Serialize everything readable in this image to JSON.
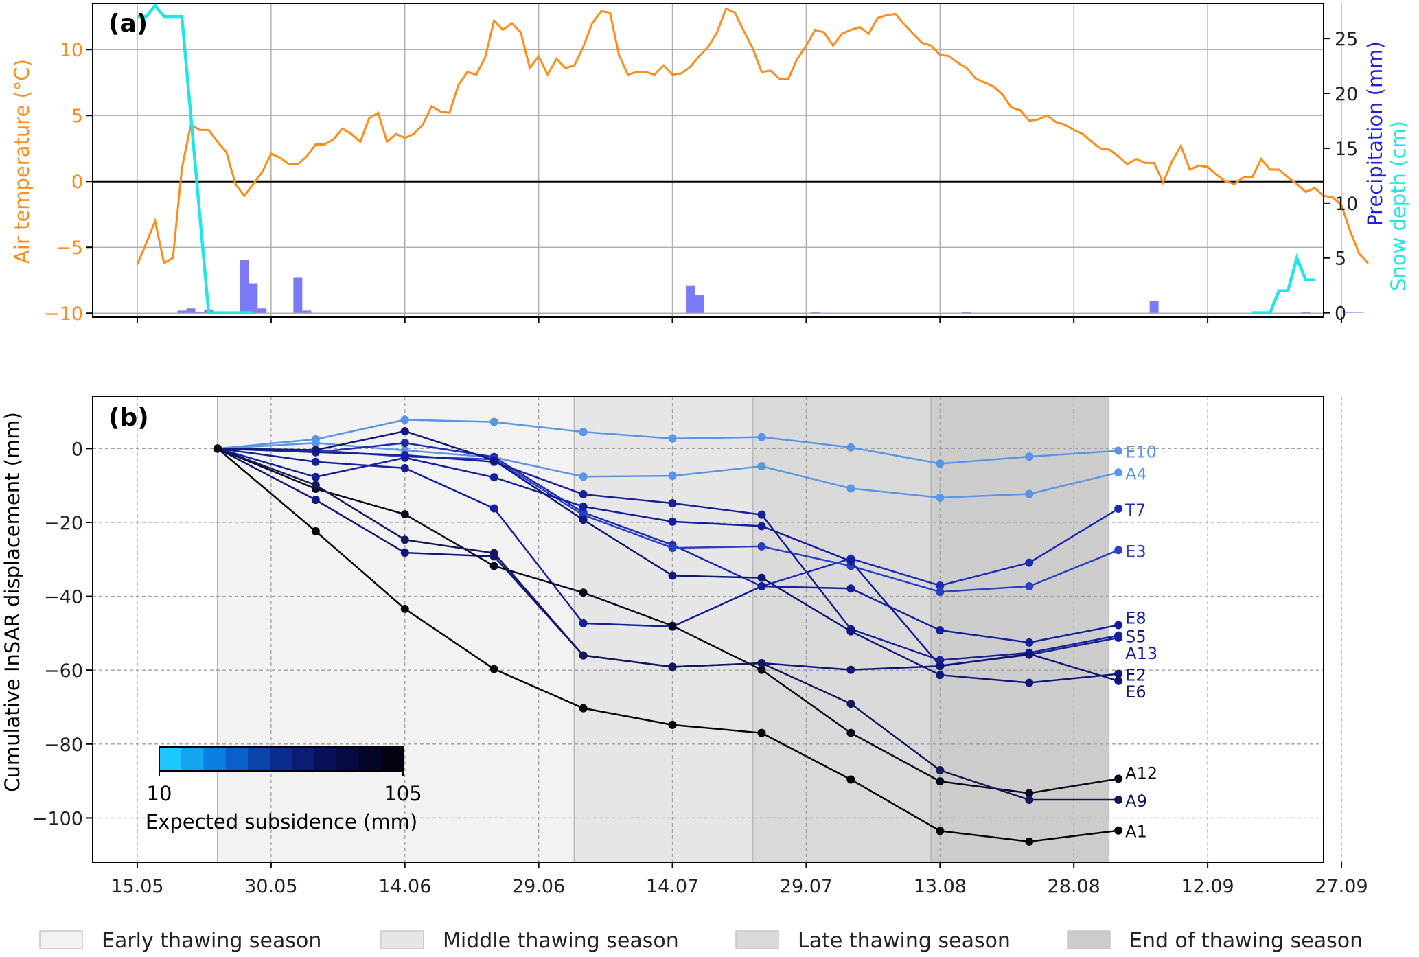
{
  "chart_data": [
    {
      "panel_label": "(a)",
      "type": "line+bar",
      "x_ticks": [
        "15.05",
        "30.05",
        "14.06",
        "29.06",
        "14.07",
        "29.07",
        "13.08",
        "28.08",
        "12.09",
        "27.09"
      ],
      "ylabel_left": "Air temperature (°C)",
      "ylabel_right_1": "Precipitation (mm)",
      "ylabel_right_2": "Snow depth (cm)",
      "y_left_ticks": [
        "−10",
        "−5",
        "0",
        "5",
        "10"
      ],
      "y_right_ticks": [
        "0",
        "5",
        "10",
        "15",
        "20",
        "25"
      ],
      "y_left_range": [
        -10.3,
        13.5
      ],
      "y_right_range": [
        -0.4,
        28.2
      ],
      "x_range_day": [
        -5,
        133
      ],
      "grid": true,
      "colors": {
        "temperature": "#ff8c1a",
        "precipitation": "#7b7bf5",
        "snow": "#22e6e6"
      },
      "temperature": {
        "day": [
          0,
          1,
          2,
          3,
          4,
          5,
          6,
          7,
          8,
          9,
          10,
          11,
          12,
          13,
          14,
          15,
          16,
          17,
          18,
          19,
          20,
          21,
          22,
          23,
          24,
          25,
          26,
          27,
          28,
          29,
          30,
          31,
          32,
          33,
          34,
          35,
          36,
          37,
          38,
          39,
          40,
          41,
          42,
          43,
          44,
          45,
          46,
          47,
          48,
          49,
          50,
          51,
          52,
          53,
          54,
          55,
          56,
          57,
          58,
          59,
          60,
          61,
          62,
          63,
          64,
          65,
          66,
          67,
          68,
          69,
          70,
          71,
          72,
          73,
          74,
          75,
          76,
          77,
          78,
          79,
          80,
          81,
          82,
          83,
          84,
          85,
          86,
          87,
          88,
          89,
          90,
          91,
          92,
          93,
          94,
          95,
          96,
          97,
          98,
          99,
          100,
          101,
          102,
          103,
          104,
          105,
          106,
          107,
          108,
          109,
          110,
          111,
          112,
          113,
          114,
          115,
          116,
          117,
          118,
          119,
          120,
          121,
          122,
          123,
          124,
          125,
          126,
          127,
          128,
          129,
          130,
          131,
          132,
          133,
          134,
          135,
          136,
          137,
          138
        ],
        "value": [
          -6.3,
          -4.7,
          -3,
          -6.2,
          -5.8,
          1,
          4.3,
          3.9,
          3.9,
          3,
          2.2,
          -0.2,
          -1.1,
          -0.2,
          0.7,
          2.1,
          1.8,
          1.3,
          1.3,
          1.9,
          2.8,
          2.8,
          3.2,
          4,
          3.6,
          3,
          4.8,
          5.2,
          3,
          3.6,
          3.3,
          3.6,
          4.3,
          5.7,
          5.3,
          5.2,
          7.3,
          8.3,
          8.1,
          9.4,
          12.2,
          11.5,
          12,
          11.3,
          8.6,
          9.5,
          8.1,
          9.3,
          8.6,
          8.8,
          10.2,
          12,
          12.9,
          12.8,
          9.6,
          8.1,
          8.3,
          8.3,
          8.1,
          8.8,
          8.1,
          8.2,
          8.7,
          9.5,
          10.2,
          11.3,
          13.1,
          12.8,
          11.4,
          10.1,
          8.3,
          8.4,
          7.8,
          7.8,
          9.3,
          10.3,
          11.5,
          11.3,
          10.3,
          11.2,
          11.5,
          11.7,
          11.2,
          12.4,
          12.6,
          12.7,
          11.9,
          11.2,
          10.5,
          10.3,
          9.6,
          9.5,
          9,
          8.6,
          7.8,
          7.5,
          7.2,
          6.6,
          5.6,
          5.4,
          4.6,
          4.7,
          5,
          4.5,
          4.3,
          3.9,
          3.6,
          3,
          2.5,
          2.4,
          1.9,
          1.3,
          1.7,
          1.4,
          1.4,
          -0.1,
          1.5,
          2.7,
          0.9,
          1.2,
          1.1,
          0.5,
          0,
          -0.2,
          0.3,
          0.3,
          1.7,
          0.9,
          0.9,
          0.3,
          -0.2,
          -0.8,
          -0.5,
          -1.1,
          -1.2,
          -1.8,
          -3.8,
          -5.5,
          -6.2
        ]
      },
      "snow_depth": {
        "day": [
          0,
          1,
          2,
          3,
          4,
          5,
          6,
          7,
          8,
          9,
          10,
          11,
          12,
          13,
          125,
          126,
          127,
          128,
          129,
          130,
          131,
          132
        ],
        "value": [
          27,
          27,
          28,
          27,
          27,
          27,
          18,
          9,
          0,
          0,
          0,
          0,
          0,
          0,
          0,
          0,
          0,
          2,
          2,
          5,
          3,
          3
        ]
      },
      "precipitation": {
        "day": [
          0,
          1,
          2,
          3,
          4,
          5,
          6,
          7,
          8,
          9,
          10,
          11,
          12,
          13,
          14,
          15,
          16,
          17,
          18,
          19,
          20,
          21,
          22,
          23,
          24,
          25,
          26,
          27,
          28,
          29,
          30,
          31,
          32,
          33,
          34,
          35,
          36,
          37,
          38,
          39,
          40,
          41,
          42,
          43,
          44,
          45,
          46,
          47,
          48,
          49,
          50,
          51,
          52,
          53,
          54,
          55,
          56,
          57,
          58,
          59,
          60,
          61,
          62,
          63,
          64,
          65,
          66,
          67,
          68,
          69,
          70,
          71,
          72,
          73,
          74,
          75,
          76,
          77,
          78,
          79,
          80,
          81,
          82,
          83,
          84,
          85,
          86,
          87,
          88,
          89,
          90,
          91,
          92,
          93,
          94,
          95,
          96,
          97,
          98,
          99,
          100,
          101,
          102,
          103,
          104,
          105,
          106,
          107,
          108,
          109,
          110,
          111,
          112,
          113,
          114,
          115,
          116,
          117,
          118,
          119,
          120,
          121,
          122,
          123,
          124,
          125,
          126,
          127,
          128,
          129,
          130,
          131,
          132,
          133,
          134,
          135,
          136,
          137,
          138
        ],
        "value": [
          0,
          0,
          0,
          0,
          0,
          0.2,
          0.4,
          0.1,
          0.3,
          0,
          0,
          0,
          4.8,
          2.7,
          0.4,
          0,
          0,
          0,
          3.2,
          0.2,
          0,
          0,
          0,
          0,
          0,
          0,
          0,
          0,
          0,
          0,
          0,
          0,
          0,
          0,
          0,
          0,
          0,
          0,
          0,
          0,
          0,
          0,
          0,
          0,
          0,
          0,
          0,
          0,
          0,
          0,
          0,
          0,
          0,
          0,
          0,
          0,
          0,
          0,
          0,
          0,
          0,
          0,
          2.5,
          1.6,
          0,
          0,
          0,
          0,
          0,
          0,
          0,
          0,
          0,
          0,
          0,
          0,
          0.1,
          0,
          0,
          0,
          0,
          0,
          0,
          0,
          0,
          0,
          0,
          0,
          0,
          0,
          0,
          0,
          0,
          0.1,
          0,
          0,
          0,
          0,
          0,
          0,
          0,
          0,
          0,
          0,
          0,
          0,
          0,
          0,
          0,
          0,
          0,
          0,
          0,
          0,
          1.1,
          0,
          0,
          0,
          0,
          0,
          0,
          0,
          0,
          0,
          0,
          0,
          0,
          0,
          0,
          0,
          0,
          0.1,
          0,
          0,
          0,
          0,
          0.1,
          0.1,
          0,
          0
        ]
      },
      "zero_line": 0
    },
    {
      "panel_label": "(b)",
      "type": "line",
      "ylabel": "Cumulative InSAR displacement (mm)",
      "x_ticks": [
        "15.05",
        "30.05",
        "14.06",
        "29.06",
        "14.07",
        "29.07",
        "13.08",
        "28.08",
        "12.09",
        "27.09"
      ],
      "y_ticks": [
        "0",
        "−20",
        "−40",
        "−60",
        "−80",
        "−100"
      ],
      "y_range": [
        -112,
        14
      ],
      "x_range_day": [
        -5,
        133
      ],
      "grid": "dashed",
      "x_day": [
        9,
        20,
        30,
        40,
        50,
        60,
        70,
        80,
        90,
        100,
        110
      ],
      "series": [
        {
          "name": "E10",
          "color": "#5b93e6",
          "values": [
            0,
            2.5,
            7.8,
            7.2,
            4.5,
            2.7,
            3.1,
            0.3,
            -4.1,
            -2.2,
            -0.6
          ]
        },
        {
          "name": "A4",
          "color": "#5b93e6",
          "values": [
            0,
            1.5,
            -0.5,
            -2.4,
            -7.6,
            -7.4,
            -4.8,
            -10.8,
            -13.3,
            -12.3,
            -6.5
          ]
        },
        {
          "name": "T7",
          "color": "#1d2bb3",
          "values": [
            0,
            -1,
            1.5,
            -2.3,
            -17.3,
            -26.1,
            -37.3,
            -29.8,
            -37.1,
            -30.9,
            -16.3
          ]
        },
        {
          "name": "E3",
          "color": "#2a40c4",
          "values": [
            0,
            -0.5,
            -2.2,
            -2.9,
            -18,
            -26.9,
            -26.5,
            -31.8,
            -38.8,
            -37.3,
            -27.5
          ]
        },
        {
          "name": "E8",
          "color": "#14209a",
          "values": [
            0,
            -3.6,
            -5.3,
            -16.2,
            -47.3,
            -48.2,
            -37.3,
            -37.9,
            -49.2,
            -52.5,
            -47.8
          ]
        },
        {
          "name": "S5",
          "color": "#1a2196",
          "values": [
            0,
            -1,
            -1.8,
            -3.6,
            -12.4,
            -14.8,
            -17.9,
            -48.9,
            -57.3,
            -55.3,
            -50.6
          ]
        },
        {
          "name": "A13",
          "color": "#14209a",
          "values": [
            0,
            -7.7,
            -2.5,
            -7.8,
            -15.7,
            -19.8,
            -21,
            -30.5,
            -58.8,
            -55.8,
            -51.2
          ]
        },
        {
          "name": "E2",
          "color": "#10187a",
          "values": [
            0,
            -0.4,
            4.7,
            -3.2,
            -19.3,
            -34.4,
            -35,
            -49.5,
            -61.3,
            -63.4,
            -61
          ]
        },
        {
          "name": "E6",
          "color": "#10157a",
          "values": [
            0,
            -13.9,
            -28.2,
            -29.2,
            -56,
            -59.1,
            -58.1,
            -59.9,
            -58.9,
            -55.6,
            -62.9
          ]
        },
        {
          "name": "A12",
          "color": "#0a0a1a",
          "values": [
            0,
            -10.9,
            -17.8,
            -31.8,
            -39,
            -48,
            -59.9,
            -77,
            -90.1,
            -93.3,
            -89.4
          ]
        },
        {
          "name": "A9",
          "color": "#121a5a",
          "values": [
            0,
            -9.9,
            -24.7,
            -28.3,
            -56,
            -59.1,
            -58.1,
            -69.1,
            -87.1,
            -95.1,
            -95.1
          ]
        },
        {
          "name": "A1",
          "color": "#050505",
          "values": [
            0,
            -22.4,
            -43.4,
            -59.7,
            -70.3,
            -74.8,
            -77,
            -89.6,
            -103.5,
            -106.4,
            -103.4
          ]
        }
      ],
      "seasons": [
        {
          "label": "Early thawing season",
          "start_day": 9,
          "end_day": 49,
          "color": "#f2f2f2"
        },
        {
          "label": "Middle thawing season",
          "start_day": 49,
          "end_day": 69,
          "color": "#e6e6e6"
        },
        {
          "label": "Late thawing season",
          "start_day": 69,
          "end_day": 89,
          "color": "#d9d9d9"
        },
        {
          "label": "End of thawing season",
          "start_day": 89,
          "end_day": 109,
          "color": "#cccccc"
        }
      ],
      "colorbar": {
        "label": "Expected subsidence (mm)",
        "min": "10",
        "max": "105",
        "stops": [
          "#1ec8ff",
          "#12a6f0",
          "#0a7fe0",
          "#0a5fc8",
          "#0b43aa",
          "#0b2e8e",
          "#0a1d73",
          "#081158",
          "#060a40",
          "#040628",
          "#020212"
        ]
      }
    }
  ]
}
